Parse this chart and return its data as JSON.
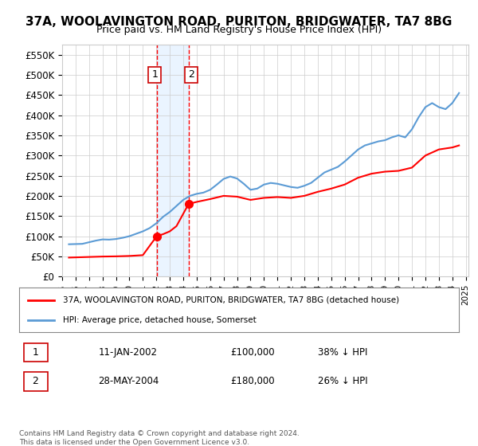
{
  "title": "37A, WOOLAVINGTON ROAD, PURITON, BRIDGWATER, TA7 8BG",
  "subtitle": "Price paid vs. HM Land Registry's House Price Index (HPI)",
  "ylabel": "",
  "xlabel": "",
  "ylim": [
    0,
    575000
  ],
  "yticks": [
    0,
    50000,
    100000,
    150000,
    200000,
    250000,
    300000,
    350000,
    400000,
    450000,
    500000,
    550000
  ],
  "ytick_labels": [
    "£0",
    "£50K",
    "£100K",
    "£150K",
    "£200K",
    "£250K",
    "£300K",
    "£350K",
    "£400K",
    "£450K",
    "£500K",
    "£550K"
  ],
  "hpi_color": "#5B9BD5",
  "price_color": "#FF0000",
  "transaction1_date": 2002.03,
  "transaction1_price": 100000,
  "transaction2_date": 2004.4,
  "transaction2_price": 180000,
  "transaction1_label": "1",
  "transaction2_label": "2",
  "legend_address": "37A, WOOLAVINGTON ROAD, PURITON, BRIDGWATER, TA7 8BG (detached house)",
  "legend_hpi": "HPI: Average price, detached house, Somerset",
  "table_row1": [
    "1",
    "11-JAN-2002",
    "£100,000",
    "38% ↓ HPI"
  ],
  "table_row2": [
    "2",
    "28-MAY-2004",
    "£180,000",
    "26% ↓ HPI"
  ],
  "footer": "Contains HM Land Registry data © Crown copyright and database right 2024.\nThis data is licensed under the Open Government Licence v3.0.",
  "background_color": "#FFFFFF",
  "grid_color": "#CCCCCC",
  "shade_color": "#DDEEFF"
}
